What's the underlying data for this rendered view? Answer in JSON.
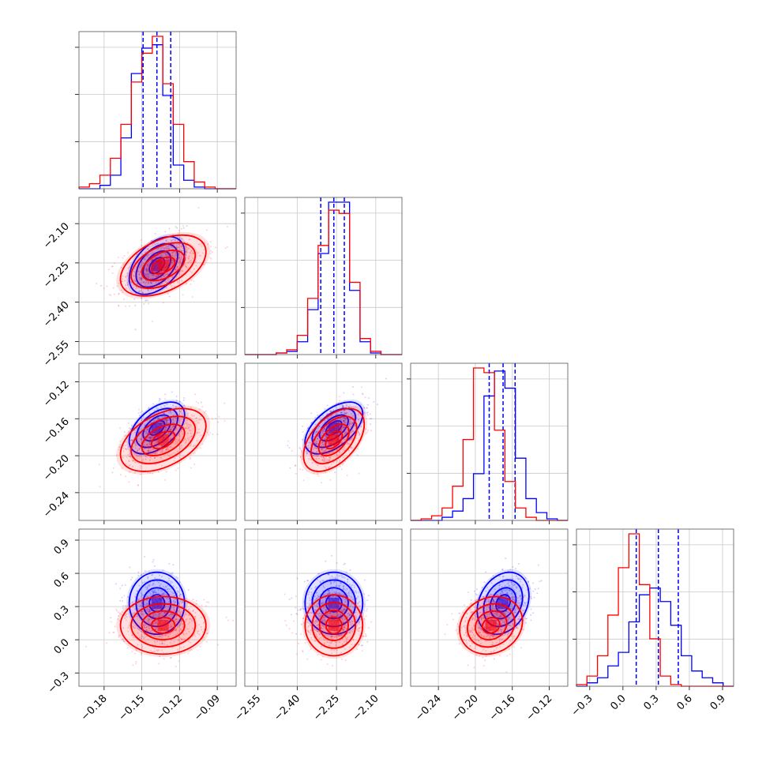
{
  "chart_data": {
    "type": "corner",
    "grid": true,
    "colors": {
      "series_a": "#0000ff",
      "series_b": "#ff0000"
    },
    "variables": [
      {
        "ticks": [
          -0.18,
          -0.15,
          -0.12,
          -0.09
        ],
        "tick_labels": [
          "−0.18",
          "−0.15",
          "−0.12",
          "−0.09"
        ],
        "range": [
          -0.2,
          -0.075
        ]
      },
      {
        "ticks": [
          -2.55,
          -2.4,
          -2.25,
          -2.1
        ],
        "tick_labels": [
          "−2.55",
          "−2.40",
          "−2.25",
          "−2.10"
        ],
        "range": [
          -2.6,
          -2.0
        ]
      },
      {
        "ticks": [
          -0.24,
          -0.2,
          -0.16,
          -0.12
        ],
        "tick_labels": [
          "−0.24",
          "−0.20",
          "−0.16",
          "−0.12"
        ],
        "range": [
          -0.27,
          -0.1
        ]
      },
      {
        "ticks": [
          -0.3,
          0.0,
          0.3,
          0.6,
          0.9
        ],
        "tick_labels": [
          "−0.3",
          "0.0",
          "0.3",
          "0.6",
          "0.9"
        ],
        "range": [
          -0.42,
          1.0
        ]
      }
    ],
    "series": [
      {
        "color": "#0000ff",
        "mean": [
          -0.138,
          -2.26,
          -0.17,
          0.33
        ],
        "std": [
          0.011,
          0.055,
          0.014,
          0.14
        ],
        "corr": {
          "0-1": 0.45,
          "0-2": 0.5,
          "1-2": 0.55,
          "0-3": 0.0,
          "1-3": 0.0,
          "2-3": 0.25
        },
        "quantiles": [
          [
            -0.149,
            -0.138,
            -0.127
          ],
          [
            -2.31,
            -2.26,
            -2.22
          ],
          [
            -0.185,
            -0.17,
            -0.157
          ],
          [
            0.12,
            0.32,
            0.5
          ]
        ],
        "histograms": [
          [
            0,
            0,
            2,
            8,
            30,
            68,
            83,
            85,
            55,
            14,
            5,
            1,
            0,
            0,
            0
          ],
          [
            0,
            0,
            0,
            1,
            2,
            8,
            28,
            63,
            95,
            95,
            40,
            8,
            1,
            0,
            0
          ],
          [
            0,
            0,
            0,
            2,
            6,
            14,
            30,
            80,
            96,
            85,
            40,
            14,
            5,
            1,
            0
          ],
          [
            0,
            2,
            5,
            12,
            20,
            38,
            54,
            58,
            50,
            36,
            18,
            9,
            5,
            2,
            0
          ]
        ]
      },
      {
        "color": "#ff0000",
        "mean": [
          -0.133,
          -2.26,
          -0.183,
          0.13
        ],
        "std": [
          0.017,
          0.058,
          0.017,
          0.13
        ],
        "corr": {
          "0-1": 0.45,
          "0-2": 0.45,
          "1-2": 0.5,
          "0-3": 0.0,
          "1-3": 0.0,
          "2-3": 0.15
        },
        "quantiles": [
          null,
          null,
          null,
          null
        ],
        "histograms": [
          [
            1,
            3,
            8,
            18,
            38,
            63,
            80,
            90,
            62,
            38,
            16,
            4,
            1,
            0,
            0
          ],
          [
            0,
            0,
            0,
            1,
            3,
            12,
            35,
            68,
            90,
            88,
            45,
            10,
            2,
            0,
            0
          ],
          [
            0,
            1,
            3,
            8,
            22,
            52,
            98,
            95,
            58,
            25,
            8,
            2,
            0,
            0,
            0
          ],
          [
            1,
            6,
            18,
            42,
            70,
            90,
            60,
            28,
            6,
            1,
            0,
            0,
            0,
            0,
            0
          ]
        ]
      }
    ]
  }
}
